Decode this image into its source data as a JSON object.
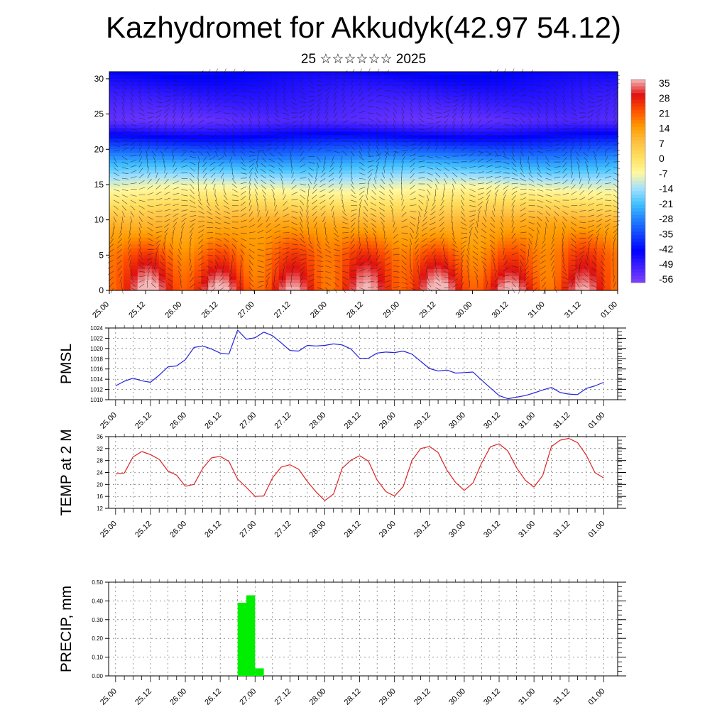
{
  "title": "Kazhydromet for Akkudyk(42.97 54.12)",
  "subtitle": "25 ☆☆☆☆☆☆ 2025",
  "colors": {
    "pmsl_line": "#2222dd",
    "temp_line": "#dd2222",
    "precip_bar": "#00ee00",
    "axis": "#000000",
    "grid": "#555555"
  },
  "chart_data": [
    {
      "type": "heatmap",
      "name": "cross-section",
      "yticks": [
        0,
        5,
        10,
        15,
        20,
        25,
        30
      ],
      "ylim": [
        0,
        31
      ],
      "xlim": [
        0,
        7
      ],
      "xtick_labels": [
        "25.00",
        "25.12",
        "26.00",
        "26.12",
        "27.00",
        "27.12",
        "28.00",
        "28.12",
        "29.00",
        "29.12",
        "30.00",
        "30.12",
        "31.00",
        "31.12",
        "01.00"
      ],
      "colorbar_labels": [
        "35",
        "28",
        "21",
        "14",
        "7",
        "0",
        "-7",
        "-14",
        "-21",
        "-28",
        "-35",
        "-42",
        "-49",
        "-56"
      ],
      "colorbar_colors": [
        "#f4b8b8",
        "#e01010",
        "#ff5000",
        "#ff9a00",
        "#ffc040",
        "#ffe060",
        "#fff8a0",
        "#a0e0ff",
        "#40c0ff",
        "#2080ff",
        "#1040ff",
        "#0000ff",
        "#4020ff",
        "#8040ff"
      ],
      "value_range": [
        -60,
        38
      ],
      "field_anchors": [
        {
          "level": 0,
          "value": 30
        },
        {
          "level": 5,
          "value": 22
        },
        {
          "level": 10,
          "value": 10
        },
        {
          "level": 15,
          "value": -10
        },
        {
          "level": 20,
          "value": -35
        },
        {
          "level": 24,
          "value": -56
        },
        {
          "level": 28,
          "value": -50
        },
        {
          "level": 31,
          "value": -45
        }
      ]
    },
    {
      "type": "line",
      "name": "pmsl",
      "ylabel": "PMSL",
      "ylim": [
        1010,
        1024
      ],
      "yticks": [
        1010,
        1012,
        1014,
        1016,
        1018,
        1020,
        1022,
        1024
      ],
      "xlim": [
        -0.1,
        7.2
      ],
      "xtick_labels": [
        "25.00",
        "25.12",
        "26.00",
        "26.12",
        "27.00",
        "27.12",
        "28.00",
        "28.12",
        "29.00",
        "29.12",
        "30.00",
        "30.12",
        "31.00",
        "31.12",
        "01.00"
      ],
      "x": [
        0,
        0.125,
        0.25,
        0.375,
        0.5,
        0.625,
        0.75,
        0.875,
        1,
        1.125,
        1.25,
        1.375,
        1.5,
        1.625,
        1.75,
        1.875,
        2,
        2.125,
        2.25,
        2.375,
        2.5,
        2.625,
        2.75,
        2.875,
        3,
        3.125,
        3.25,
        3.375,
        3.5,
        3.625,
        3.75,
        3.875,
        4,
        4.125,
        4.25,
        4.375,
        4.5,
        4.625,
        4.75,
        4.875,
        5,
        5.125,
        5.25,
        5.375,
        5.5,
        5.625,
        5.75,
        5.875,
        6,
        6.125,
        6.25,
        6.375,
        6.5,
        6.625,
        6.75,
        6.875,
        7
      ],
      "values": [
        1012.7,
        1013.6,
        1014.2,
        1013.7,
        1013.4,
        1014.8,
        1016.4,
        1016.6,
        1017.8,
        1020.2,
        1020.5,
        1019.9,
        1019.1,
        1018.9,
        1023.6,
        1021.8,
        1022.1,
        1023.2,
        1022.5,
        1021.1,
        1019.6,
        1019.5,
        1020.6,
        1020.5,
        1020.6,
        1020.9,
        1020.7,
        1019.9,
        1018.1,
        1018.1,
        1019.1,
        1019.3,
        1019.2,
        1019.5,
        1018.9,
        1017.5,
        1016.1,
        1015.6,
        1015.8,
        1015.2,
        1015.3,
        1015.4,
        1013.8,
        1012.3,
        1010.8,
        1010.2,
        1010.5,
        1010.8,
        1011.3,
        1011.9,
        1012.4,
        1011.4,
        1011.1,
        1011.0,
        1012.2,
        1012.7,
        1013.4
      ]
    },
    {
      "type": "line",
      "name": "temp",
      "ylabel": "TEMP at 2 M",
      "ylim": [
        12,
        36
      ],
      "yticks": [
        12,
        16,
        20,
        24,
        28,
        32,
        36
      ],
      "xlim": [
        -0.1,
        7.2
      ],
      "xtick_labels": [
        "25.00",
        "25.12",
        "26.00",
        "26.12",
        "27.00",
        "27.12",
        "28.00",
        "28.12",
        "29.00",
        "29.12",
        "30.00",
        "30.12",
        "31.00",
        "31.12",
        "01.00"
      ],
      "x": [
        0,
        0.125,
        0.25,
        0.375,
        0.5,
        0.625,
        0.75,
        0.875,
        1,
        1.125,
        1.25,
        1.375,
        1.5,
        1.625,
        1.75,
        1.875,
        2,
        2.125,
        2.25,
        2.375,
        2.5,
        2.625,
        2.75,
        2.875,
        3,
        3.125,
        3.25,
        3.375,
        3.5,
        3.625,
        3.75,
        3.875,
        4,
        4.125,
        4.25,
        4.375,
        4.5,
        4.625,
        4.75,
        4.875,
        5,
        5.125,
        5.25,
        5.375,
        5.5,
        5.625,
        5.75,
        5.875,
        6,
        6.125,
        6.25,
        6.375,
        6.5,
        6.625,
        6.75,
        6.875,
        7
      ],
      "values": [
        23.5,
        23.8,
        29.2,
        31.0,
        30.0,
        28.4,
        24.5,
        23.1,
        19.4,
        20.0,
        25.4,
        28.9,
        29.4,
        27.7,
        21.8,
        19.0,
        16.0,
        16.1,
        22.2,
        25.8,
        26.6,
        25.1,
        21.0,
        17.5,
        14.6,
        16.8,
        25.4,
        28.1,
        29.6,
        27.8,
        21.5,
        17.6,
        16.1,
        19.3,
        28.0,
        32.0,
        32.7,
        30.7,
        24.8,
        20.7,
        18.0,
        20.5,
        27.2,
        32.6,
        33.6,
        31.2,
        25.6,
        21.4,
        19.1,
        23.0,
        32.7,
        34.8,
        35.4,
        34.0,
        29.8,
        23.9,
        22.2
      ]
    },
    {
      "type": "bar",
      "name": "precip",
      "ylabel": "PRECIP, mm",
      "ylim": [
        0,
        0.5
      ],
      "yticks": [
        0,
        0.1,
        0.2,
        0.3,
        0.4,
        0.5
      ],
      "ytick_labels": [
        "0.00",
        "0.10",
        "0.20",
        "0.30",
        "0.40",
        "0.50"
      ],
      "xlim": [
        -0.1,
        7.2
      ],
      "xtick_labels": [
        "25.00",
        "25.12",
        "26.00",
        "26.12",
        "27.00",
        "27.12",
        "28.00",
        "28.12",
        "29.00",
        "29.12",
        "30.00",
        "30.12",
        "31.00",
        "31.12",
        "01.00"
      ],
      "bar_width": 0.125,
      "x": [
        1.75,
        1.875,
        2.0
      ],
      "values": [
        0.39,
        0.43,
        0.04
      ]
    }
  ]
}
